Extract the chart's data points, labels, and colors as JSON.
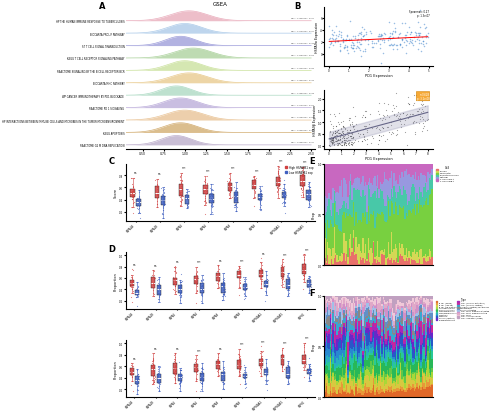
{
  "gsea_pathways": [
    "HP THE HUMAN IMMUNE RESPONSE TO TUBERCULOSIS",
    "BIOCARTA PROLIF PATHWAY",
    "ST T CELL SIGNAL TRANSDUCTION",
    "KEGG T CELL RECEPTOR SIGNALING PATHWAY",
    "REACTOME SIGNALING BY THE B CELL RECEPTOR BCR",
    "BIOCARTA MHC PATHWAY",
    "WP CANCER IMMUNOTHERAPY BY PD1 BLOCKADE",
    "REACTOME PD 1 SIGNALING",
    "HP INTERACTIONS BETWEEN IMMUNE CELLS AND MICROBES IN THE TUMOR MICROENVIRONMENT",
    "KEGG APOPTOSIS",
    "REACTOME G2 M DNA REPLICATION"
  ],
  "gsea_colors": [
    "#e8a8b8",
    "#a8c8e8",
    "#9898d8",
    "#a8d098",
    "#c8e098",
    "#e8c888",
    "#a8d8c0",
    "#b8a8d8",
    "#e8c090",
    "#d0a868",
    "#b8a8c8"
  ],
  "stacked_colors_E": [
    "#e8706a",
    "#d4d855",
    "#78d040",
    "#48c8a8",
    "#9898e0",
    "#c868c0"
  ],
  "stacked_labels_E": [
    "B cell",
    "Monocyte",
    "Endothelial cell",
    "Natural",
    "T cell CD4+",
    "T cell CD8+"
  ],
  "stacked_colors_F_left": [
    "#e06828",
    "#e89838",
    "#d8c840",
    "#a8d838",
    "#60c848",
    "#28b858",
    "#28c898",
    "#28b0c0",
    "#2888d0",
    "#2858c8",
    "#6828c8",
    "#a828b8",
    "#c82898"
  ],
  "stacked_colors_F_right": [
    "#38a8d0",
    "#888888",
    "#6090c8",
    "#a0c0e8",
    "#d090c8",
    "#e0a8c8",
    "#f0c8d8",
    "#c0a0c0"
  ],
  "stacked_colors_F": [
    "#e06828",
    "#e89838",
    "#d8c840",
    "#a8d838",
    "#60c848",
    "#28b858",
    "#28c898",
    "#28b0c0",
    "#2888d0",
    "#2858c8",
    "#6828c8",
    "#a828b8",
    "#c82898",
    "#38a8d0",
    "#888888",
    "#6090c8",
    "#a0c0e8",
    "#d090c8",
    "#e0a8c8",
    "#f0c8d8",
    "#c0a0c0"
  ],
  "stacked_labels_F": [
    "B cell (Naive)",
    "B cell (non-sw)",
    "B cell (sw memory)",
    "Conventional DC",
    "Granulocyte cell",
    "Macrophage cell",
    "Macrophage cell 2",
    "Mast cell",
    "Monocyte",
    "NK cell (resting)",
    "Plasmacytoid DC",
    "T cell (memory activated)",
    "T cell (memory resting)",
    "Dendritic (resting) cell biology",
    "Macrophages",
    "NK cell activated",
    "T cell CD4+ memory activated",
    "T cell CD4+ memory resting",
    "T cell CD8+",
    "T cell follicular helper",
    "T cell regulatory (Tregs)"
  ],
  "box_colors": {
    "high": "#d04040",
    "low": "#4060c0"
  },
  "significance_labels_C": [
    "ns",
    "ns",
    "***",
    "***",
    "***",
    "***",
    "***",
    "***"
  ],
  "significance_labels_D1": [
    "ns",
    "ns",
    "ns",
    "***",
    "ns",
    "***",
    "ns",
    "***",
    "***"
  ],
  "significance_labels_D2": [
    "ns",
    "ns",
    "ns",
    "***",
    "ns",
    "***",
    "***",
    "***",
    "***"
  ],
  "gsea_title": "GSEA"
}
